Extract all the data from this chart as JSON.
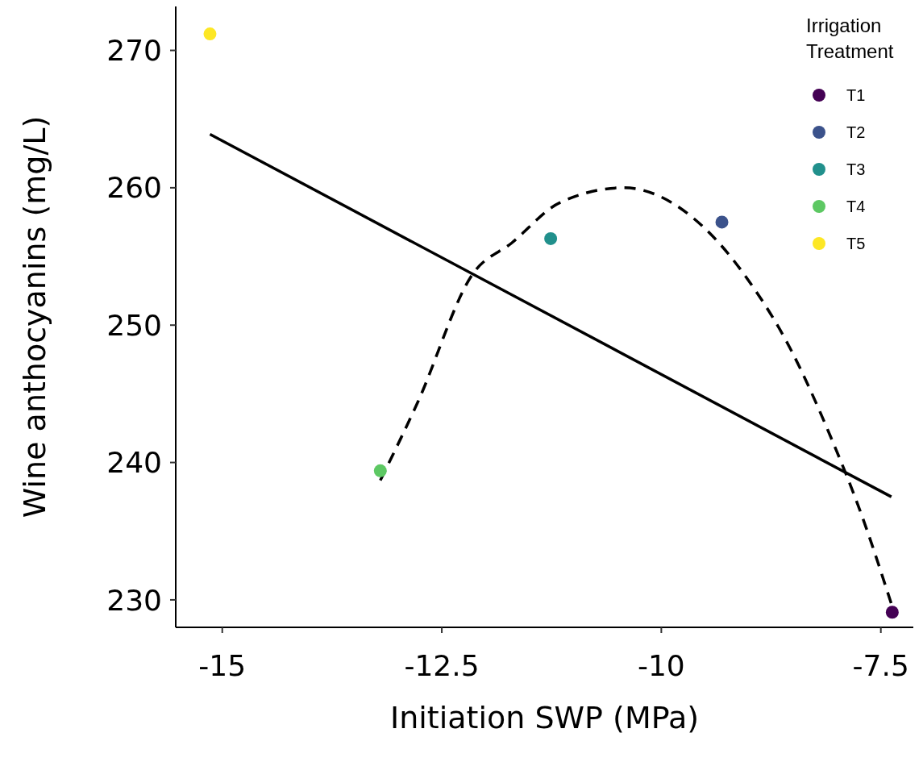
{
  "chart_data": {
    "type": "scatter",
    "xlabel": "Initiation SWP (MPa)",
    "ylabel": "Wine anthocyanins (mg/L)",
    "legend_title": "Irrigation Treatment",
    "xlim": [
      -15.53,
      -7.13
    ],
    "xticks": [
      -15,
      -12.5,
      -10,
      -7.5
    ],
    "ylim": [
      228,
      273.2
    ],
    "yticks": [
      230,
      240,
      250,
      260,
      270
    ],
    "grid": false,
    "legend": "top right",
    "marker": "circle",
    "series": [
      {
        "type": "line",
        "color": "#000000",
        "line_style": "solid",
        "marker": "none",
        "x": [
          -15.14,
          -7.38
        ],
        "values": [
          263.9,
          237.5
        ]
      },
      {
        "type": "line",
        "color": "#000000",
        "line_style": "dashed",
        "marker": "none",
        "x": [
          -13.2,
          -12.78,
          -12.15,
          -11.7,
          -11.16,
          -10.43,
          -9.53,
          -8.99,
          -8.54,
          -8.08,
          -7.72,
          -7.38
        ],
        "values": [
          238.7,
          244.3,
          253.7,
          256.0,
          258.9,
          260.0,
          257.2,
          253.1,
          248.4,
          242.0,
          236.2,
          229.7
        ]
      },
      {
        "name": "T1",
        "color": "#440154",
        "x": [
          -7.37
        ],
        "values": [
          229.1
        ]
      },
      {
        "name": "T2",
        "color": "#3b528b",
        "x": [
          -9.31
        ],
        "values": [
          257.5
        ]
      },
      {
        "name": "T3",
        "color": "#21908c",
        "x": [
          -11.26
        ],
        "values": [
          256.3
        ]
      },
      {
        "name": "T4",
        "color": "#5dc863",
        "x": [
          -13.2
        ],
        "values": [
          239.4
        ]
      },
      {
        "name": "T5",
        "color": "#fde725",
        "x": [
          -15.14
        ],
        "values": [
          271.2
        ]
      }
    ]
  }
}
